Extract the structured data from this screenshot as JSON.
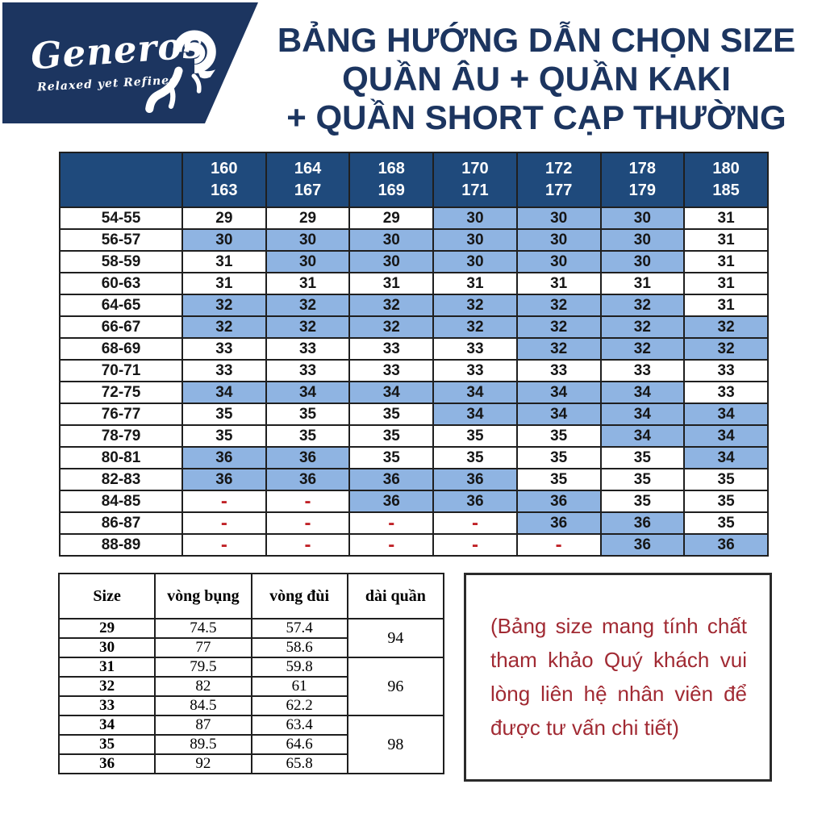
{
  "logo": {
    "brand": "Generos",
    "tagline": "Relaxed yet Refined",
    "icon": "ram-icon"
  },
  "title": {
    "line1": "BẢNG HƯỚNG DẪN CHỌN SIZE",
    "line2": "QUẦN ÂU + QUẦN KAKI",
    "line3": "+ QUẦN SHORT CẠP THƯỜNG"
  },
  "colors": {
    "navy_dark": "#1c3560",
    "navy_header": "#1f4a7c",
    "highlight_blue": "#8fb4e2",
    "dash_red": "#c02227",
    "note_red": "#a12a33",
    "border_dark": "#1f1f1f"
  },
  "size_chart": {
    "dash": "-",
    "height_columns": [
      [
        "160",
        "163"
      ],
      [
        "164",
        "167"
      ],
      [
        "168",
        "169"
      ],
      [
        "170",
        "171"
      ],
      [
        "172",
        "177"
      ],
      [
        "178",
        "179"
      ],
      [
        "180",
        "185"
      ]
    ],
    "rows": [
      {
        "waist": "54-55",
        "cells": [
          {
            "v": "29",
            "hl": false
          },
          {
            "v": "29",
            "hl": false
          },
          {
            "v": "29",
            "hl": false
          },
          {
            "v": "30",
            "hl": true
          },
          {
            "v": "30",
            "hl": true
          },
          {
            "v": "30",
            "hl": true
          },
          {
            "v": "31",
            "hl": false
          }
        ]
      },
      {
        "waist": "56-57",
        "cells": [
          {
            "v": "30",
            "hl": true
          },
          {
            "v": "30",
            "hl": true
          },
          {
            "v": "30",
            "hl": true
          },
          {
            "v": "30",
            "hl": true
          },
          {
            "v": "30",
            "hl": true
          },
          {
            "v": "30",
            "hl": true
          },
          {
            "v": "31",
            "hl": false
          }
        ]
      },
      {
        "waist": "58-59",
        "cells": [
          {
            "v": "31",
            "hl": false
          },
          {
            "v": "30",
            "hl": true
          },
          {
            "v": "30",
            "hl": true
          },
          {
            "v": "30",
            "hl": true
          },
          {
            "v": "30",
            "hl": true
          },
          {
            "v": "30",
            "hl": true
          },
          {
            "v": "31",
            "hl": false
          }
        ]
      },
      {
        "waist": "60-63",
        "cells": [
          {
            "v": "31",
            "hl": false
          },
          {
            "v": "31",
            "hl": false
          },
          {
            "v": "31",
            "hl": false
          },
          {
            "v": "31",
            "hl": false
          },
          {
            "v": "31",
            "hl": false
          },
          {
            "v": "31",
            "hl": false
          },
          {
            "v": "31",
            "hl": false
          }
        ]
      },
      {
        "waist": "64-65",
        "cells": [
          {
            "v": "32",
            "hl": true
          },
          {
            "v": "32",
            "hl": true
          },
          {
            "v": "32",
            "hl": true
          },
          {
            "v": "32",
            "hl": true
          },
          {
            "v": "32",
            "hl": true
          },
          {
            "v": "32",
            "hl": true
          },
          {
            "v": "31",
            "hl": false
          }
        ]
      },
      {
        "waist": "66-67",
        "cells": [
          {
            "v": "32",
            "hl": true
          },
          {
            "v": "32",
            "hl": true
          },
          {
            "v": "32",
            "hl": true
          },
          {
            "v": "32",
            "hl": true
          },
          {
            "v": "32",
            "hl": true
          },
          {
            "v": "32",
            "hl": true
          },
          {
            "v": "32",
            "hl": true
          }
        ]
      },
      {
        "waist": "68-69",
        "cells": [
          {
            "v": "33",
            "hl": false
          },
          {
            "v": "33",
            "hl": false
          },
          {
            "v": "33",
            "hl": false
          },
          {
            "v": "33",
            "hl": false
          },
          {
            "v": "32",
            "hl": true
          },
          {
            "v": "32",
            "hl": true
          },
          {
            "v": "32",
            "hl": true
          }
        ]
      },
      {
        "waist": "70-71",
        "cells": [
          {
            "v": "33",
            "hl": false
          },
          {
            "v": "33",
            "hl": false
          },
          {
            "v": "33",
            "hl": false
          },
          {
            "v": "33",
            "hl": false
          },
          {
            "v": "33",
            "hl": false
          },
          {
            "v": "33",
            "hl": false
          },
          {
            "v": "33",
            "hl": false
          }
        ]
      },
      {
        "waist": "72-75",
        "cells": [
          {
            "v": "34",
            "hl": true
          },
          {
            "v": "34",
            "hl": true
          },
          {
            "v": "34",
            "hl": true
          },
          {
            "v": "34",
            "hl": true
          },
          {
            "v": "34",
            "hl": true
          },
          {
            "v": "34",
            "hl": true
          },
          {
            "v": "33",
            "hl": false
          }
        ]
      },
      {
        "waist": "76-77",
        "cells": [
          {
            "v": "35",
            "hl": false
          },
          {
            "v": "35",
            "hl": false
          },
          {
            "v": "35",
            "hl": false
          },
          {
            "v": "34",
            "hl": true
          },
          {
            "v": "34",
            "hl": true
          },
          {
            "v": "34",
            "hl": true
          },
          {
            "v": "34",
            "hl": true
          }
        ]
      },
      {
        "waist": "78-79",
        "cells": [
          {
            "v": "35",
            "hl": false
          },
          {
            "v": "35",
            "hl": false
          },
          {
            "v": "35",
            "hl": false
          },
          {
            "v": "35",
            "hl": false
          },
          {
            "v": "35",
            "hl": false
          },
          {
            "v": "34",
            "hl": true
          },
          {
            "v": "34",
            "hl": true
          }
        ]
      },
      {
        "waist": "80-81",
        "cells": [
          {
            "v": "36",
            "hl": true
          },
          {
            "v": "36",
            "hl": true
          },
          {
            "v": "35",
            "hl": false
          },
          {
            "v": "35",
            "hl": false
          },
          {
            "v": "35",
            "hl": false
          },
          {
            "v": "35",
            "hl": false
          },
          {
            "v": "34",
            "hl": true
          }
        ]
      },
      {
        "waist": "82-83",
        "cells": [
          {
            "v": "36",
            "hl": true
          },
          {
            "v": "36",
            "hl": true
          },
          {
            "v": "36",
            "hl": true
          },
          {
            "v": "36",
            "hl": true
          },
          {
            "v": "35",
            "hl": false
          },
          {
            "v": "35",
            "hl": false
          },
          {
            "v": "35",
            "hl": false
          }
        ]
      },
      {
        "waist": "84-85",
        "cells": [
          {
            "v": "-",
            "hl": false
          },
          {
            "v": "-",
            "hl": false
          },
          {
            "v": "36",
            "hl": true
          },
          {
            "v": "36",
            "hl": true
          },
          {
            "v": "36",
            "hl": true
          },
          {
            "v": "35",
            "hl": false
          },
          {
            "v": "35",
            "hl": false
          }
        ]
      },
      {
        "waist": "86-87",
        "cells": [
          {
            "v": "-",
            "hl": false
          },
          {
            "v": "-",
            "hl": false
          },
          {
            "v": "-",
            "hl": false
          },
          {
            "v": "-",
            "hl": false
          },
          {
            "v": "36",
            "hl": true
          },
          {
            "v": "36",
            "hl": true
          },
          {
            "v": "35",
            "hl": false
          }
        ]
      },
      {
        "waist": "88-89",
        "cells": [
          {
            "v": "-",
            "hl": false
          },
          {
            "v": "-",
            "hl": false
          },
          {
            "v": "-",
            "hl": false
          },
          {
            "v": "-",
            "hl": false
          },
          {
            "v": "-",
            "hl": false
          },
          {
            "v": "36",
            "hl": true
          },
          {
            "v": "36",
            "hl": true
          }
        ]
      }
    ]
  },
  "measure_table": {
    "headers": [
      "Size",
      "vòng bụng",
      "vòng đùi",
      "dài quần"
    ],
    "rows": [
      {
        "size": "29",
        "vong_bung": "74.5",
        "vong_dui": "57.4"
      },
      {
        "size": "30",
        "vong_bung": "77",
        "vong_dui": "58.6"
      },
      {
        "size": "31",
        "vong_bung": "79.5",
        "vong_dui": "59.8"
      },
      {
        "size": "32",
        "vong_bung": "82",
        "vong_dui": "61"
      },
      {
        "size": "33",
        "vong_bung": "84.5",
        "vong_dui": "62.2"
      },
      {
        "size": "34",
        "vong_bung": "87",
        "vong_dui": "63.4"
      },
      {
        "size": "35",
        "vong_bung": "89.5",
        "vong_dui": "64.6"
      },
      {
        "size": "36",
        "vong_bung": "92",
        "vong_dui": "65.8"
      }
    ],
    "length_groups": [
      {
        "value": "94",
        "rows": 2
      },
      {
        "value": "96",
        "rows": 3
      },
      {
        "value": "98",
        "rows": 3
      }
    ]
  },
  "note": {
    "text": "(Bảng size mang tính chất tham khảo Quý khách vui lòng liên hệ nhân viên để được tư vấn chi tiết)"
  }
}
